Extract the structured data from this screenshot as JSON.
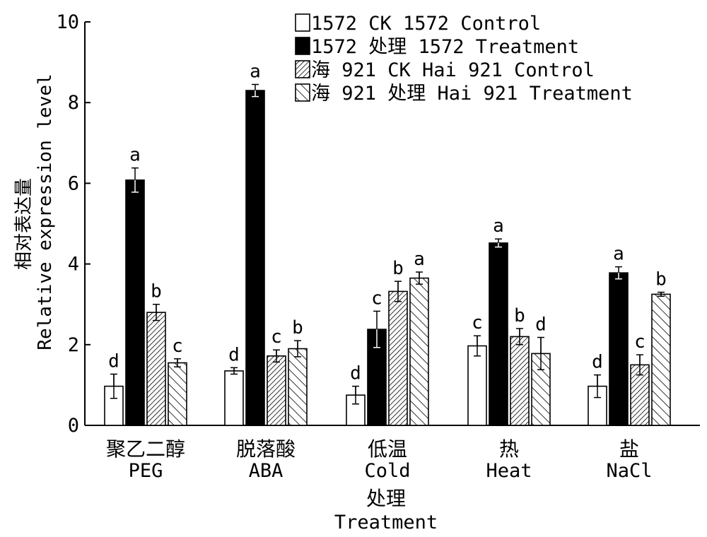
{
  "chart_data": {
    "type": "bar",
    "ylabel_cn": "相对表达量",
    "ylabel": "Relative expression level",
    "xlabel_cn": "处理",
    "xlabel": "Treatment",
    "ylim": [
      0,
      10
    ],
    "yticks": [
      0,
      2,
      4,
      6,
      8,
      10
    ],
    "categories": [
      {
        "cn": "聚乙二醇",
        "en": "PEG"
      },
      {
        "cn": "脱落酸",
        "en": "ABA"
      },
      {
        "cn": "低温",
        "en": "Cold"
      },
      {
        "cn": "热",
        "en": "Heat"
      },
      {
        "cn": "盐",
        "en": "NaCl"
      }
    ],
    "legend_position": "top-right",
    "series": [
      {
        "name": "1572 CK 1572 Control",
        "fill": "white",
        "values": [
          0.97,
          1.35,
          0.75,
          1.97,
          0.97
        ],
        "errors": [
          0.3,
          0.08,
          0.22,
          0.25,
          0.28
        ],
        "letters": [
          "d",
          "d",
          "d",
          "c",
          "d"
        ]
      },
      {
        "name": "1572 处理 1572 Treatment",
        "fill": "black",
        "values": [
          6.08,
          8.3,
          2.38,
          4.52,
          3.78
        ],
        "errors": [
          0.3,
          0.15,
          0.45,
          0.1,
          0.15
        ],
        "letters": [
          "a",
          "a",
          "c",
          "a",
          "a"
        ]
      },
      {
        "name": "海 921 CK Hai 921 Control",
        "fill": "dense-hatch",
        "values": [
          2.8,
          1.72,
          3.32,
          2.2,
          1.5
        ],
        "errors": [
          0.2,
          0.15,
          0.25,
          0.2,
          0.25
        ],
        "letters": [
          "b",
          "c",
          "b",
          "b",
          "c"
        ]
      },
      {
        "name": "海 921 处理 Hai 921 Treatment",
        "fill": "sparse-hatch",
        "values": [
          1.55,
          1.9,
          3.65,
          1.78,
          3.25
        ],
        "errors": [
          0.1,
          0.2,
          0.15,
          0.4,
          0.05
        ],
        "letters": [
          "c",
          "b",
          "a",
          "d",
          "b"
        ]
      }
    ]
  }
}
